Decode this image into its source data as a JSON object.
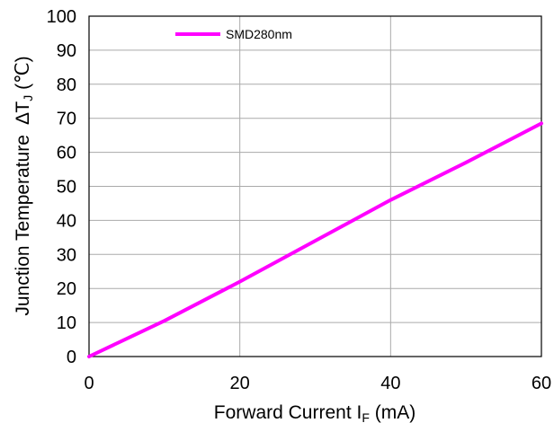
{
  "chart_data": {
    "type": "line",
    "xlabel": "Forward Current I",
    "xlabel_sub": "F",
    "xlabel_unit": " (mA)",
    "ylabel": "Junction Temperature  ∆T",
    "ylabel_sub": "J",
    "ylabel_unit": " (℃)",
    "xlim": [
      0,
      60
    ],
    "ylim": [
      0,
      100
    ],
    "xticks": [
      "0",
      "20",
      "40",
      "60"
    ],
    "yticks": [
      "0",
      "10",
      "20",
      "30",
      "40",
      "50",
      "60",
      "70",
      "80",
      "90",
      "100"
    ],
    "grid": true,
    "legend_position": "top-left",
    "series": [
      {
        "name": "SMD280nm",
        "color": "#ff00ff",
        "x": [
          0,
          10,
          20,
          30,
          40,
          50,
          60
        ],
        "y": [
          0,
          10.5,
          22,
          34,
          46,
          57,
          68.5
        ]
      }
    ]
  }
}
